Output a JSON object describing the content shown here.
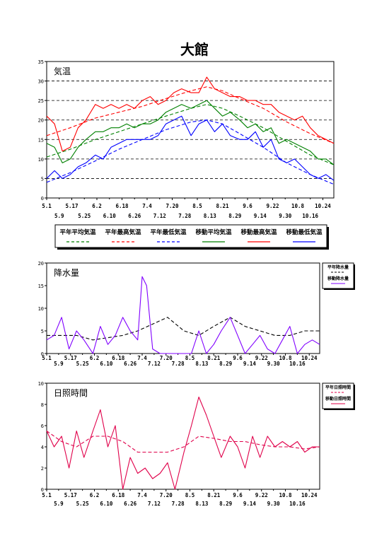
{
  "page": {
    "title": "大館"
  },
  "colors": {
    "green": "#008000",
    "red": "#ff0000",
    "blue": "#0000ff",
    "purple": "#8000ff",
    "crimson": "#e0004a",
    "black": "#000000"
  },
  "chart_data": [
    {
      "type": "line",
      "title": "気温",
      "ylim": [
        0,
        35
      ],
      "yticks": [
        "0",
        "5",
        "10",
        "15",
        "20",
        "25",
        "30",
        "35"
      ],
      "grid": true,
      "xlim": [
        "5.1",
        "10.31"
      ],
      "x_ticks_row1": [
        "5.1",
        "5.17",
        "6.2",
        "6.18",
        "7.4",
        "7.20",
        "8.5",
        "8.21",
        "9.6",
        "9.22",
        "10.8",
        "10.24"
      ],
      "x_ticks_row2": [
        "5.9",
        "5.25",
        "6.10",
        "6.26",
        "7.12",
        "7.28",
        "8.13",
        "8.29",
        "9.14",
        "9.30",
        "10.16"
      ],
      "legend_position": "bottom",
      "series": [
        {
          "name": "平年平均気温",
          "style": "dashed",
          "color": "#008000",
          "x": [
            "5.1",
            "5.16",
            "6.1",
            "6.16",
            "7.1",
            "7.16",
            "8.1",
            "8.11",
            "8.21",
            "9.1",
            "9.16",
            "10.1",
            "10.16",
            "10.31"
          ],
          "values": [
            10.5,
            12.5,
            15.0,
            17.0,
            19.0,
            21.0,
            23.0,
            24.0,
            23.0,
            21.0,
            18.0,
            14.5,
            11.0,
            8.5
          ]
        },
        {
          "name": "平年最高気温",
          "style": "dashed",
          "color": "#ff0000",
          "x": [
            "5.1",
            "5.16",
            "6.1",
            "6.16",
            "7.1",
            "7.16",
            "8.1",
            "8.11",
            "8.21",
            "9.1",
            "9.16",
            "10.1",
            "10.16",
            "10.31"
          ],
          "values": [
            16.0,
            18.0,
            20.5,
            22.0,
            23.5,
            25.5,
            27.5,
            28.5,
            27.5,
            25.5,
            23.0,
            19.5,
            16.5,
            14.0
          ]
        },
        {
          "name": "平年最低気温",
          "style": "dashed",
          "color": "#0000ff",
          "x": [
            "5.1",
            "5.16",
            "6.1",
            "6.16",
            "7.1",
            "7.16",
            "8.1",
            "8.11",
            "8.21",
            "9.1",
            "9.16",
            "10.1",
            "10.16",
            "10.31"
          ],
          "values": [
            4.0,
            6.5,
            9.5,
            12.5,
            15.0,
            17.5,
            19.5,
            20.0,
            19.0,
            16.5,
            13.0,
            9.0,
            6.0,
            3.5
          ]
        },
        {
          "name": "移動平均気温",
          "style": "solid",
          "color": "#008000",
          "x": [
            "5.1",
            "5.6",
            "5.11",
            "5.16",
            "5.21",
            "5.26",
            "6.1",
            "6.6",
            "6.11",
            "6.16",
            "6.21",
            "6.26",
            "7.1",
            "7.6",
            "7.11",
            "7.16",
            "7.21",
            "7.26",
            "8.1",
            "8.6",
            "8.11",
            "8.16",
            "8.21",
            "8.26",
            "9.1",
            "9.6",
            "9.11",
            "9.16",
            "9.21",
            "9.26",
            "10.1",
            "10.6",
            "10.11",
            "10.16",
            "10.21",
            "10.26",
            "10.31"
          ],
          "values": [
            14,
            13,
            9,
            10,
            13,
            15,
            17,
            17,
            18,
            18,
            19,
            18,
            19,
            19,
            20,
            22,
            23,
            24,
            23,
            24,
            25,
            23,
            21,
            22,
            20,
            18,
            19,
            17,
            18,
            14,
            15,
            14,
            13,
            12,
            10,
            10,
            8.5
          ]
        },
        {
          "name": "移動最高気温",
          "style": "solid",
          "color": "#ff0000",
          "x": [
            "5.1",
            "5.6",
            "5.11",
            "5.16",
            "5.21",
            "5.26",
            "6.1",
            "6.6",
            "6.11",
            "6.16",
            "6.21",
            "6.26",
            "7.1",
            "7.6",
            "7.11",
            "7.16",
            "7.21",
            "7.26",
            "8.1",
            "8.6",
            "8.11",
            "8.16",
            "8.21",
            "8.26",
            "9.1",
            "9.6",
            "9.11",
            "9.16",
            "9.21",
            "9.26",
            "10.1",
            "10.6",
            "10.11",
            "10.16",
            "10.21",
            "10.26",
            "10.31"
          ],
          "values": [
            21,
            19,
            12,
            13,
            18,
            20,
            24,
            23,
            24,
            23,
            24,
            23,
            25,
            26,
            24,
            25,
            27,
            28,
            27,
            27,
            31,
            28,
            27,
            26,
            26,
            25,
            25,
            24,
            24,
            22,
            21,
            20,
            21,
            18,
            16,
            15,
            14
          ]
        },
        {
          "name": "移動最低気温",
          "style": "solid",
          "color": "#0000ff",
          "x": [
            "5.1",
            "5.6",
            "5.11",
            "5.16",
            "5.21",
            "5.26",
            "6.1",
            "6.6",
            "6.11",
            "6.16",
            "6.21",
            "6.26",
            "7.1",
            "7.6",
            "7.11",
            "7.16",
            "7.21",
            "7.26",
            "8.1",
            "8.6",
            "8.11",
            "8.16",
            "8.21",
            "8.26",
            "9.1",
            "9.6",
            "9.11",
            "9.16",
            "9.21",
            "9.26",
            "10.1",
            "10.6",
            "10.11",
            "10.16",
            "10.21",
            "10.26",
            "10.31"
          ],
          "values": [
            5,
            7,
            5,
            6,
            8,
            9,
            11,
            10,
            13,
            14,
            15,
            15,
            15,
            15,
            16,
            19,
            20,
            21,
            16,
            19,
            20,
            17,
            19,
            16,
            15,
            15,
            17,
            13,
            15,
            10,
            9,
            10,
            8,
            6,
            5,
            6,
            4.5
          ]
        }
      ]
    },
    {
      "type": "line",
      "title": "降水量",
      "ylim": [
        0,
        20
      ],
      "yticks": [
        "0",
        "5",
        "10",
        "15",
        "20"
      ],
      "grid": false,
      "xlim": [
        "5.1",
        "10.31"
      ],
      "x_ticks_row1": [
        "5.1",
        "5.17",
        "6.2",
        "6.18",
        "7.4",
        "7.20",
        "8.5",
        "8.21",
        "9.6",
        "9.22",
        "10.8",
        "10.24"
      ],
      "x_ticks_row2": [
        "5.9",
        "5.25",
        "6.10",
        "6.26",
        "7.12",
        "7.28",
        "8.13",
        "8.29",
        "9.14",
        "9.30",
        "10.16"
      ],
      "legend_position": "right",
      "series": [
        {
          "name": "平年降水量",
          "style": "dashed",
          "color": "#000000",
          "x": [
            "5.1",
            "5.11",
            "5.21",
            "6.1",
            "6.11",
            "6.21",
            "7.1",
            "7.11",
            "7.21",
            "8.1",
            "8.11",
            "8.21",
            "9.1",
            "9.11",
            "9.21",
            "10.1",
            "10.11",
            "10.21",
            "10.31"
          ],
          "values": [
            4,
            4,
            4,
            3,
            3.5,
            4,
            5,
            6.5,
            8,
            5,
            4,
            6,
            8,
            6,
            5,
            4,
            4,
            5,
            5
          ]
        },
        {
          "name": "移動降水量",
          "style": "solid",
          "color": "#8000ff",
          "x": [
            "5.1",
            "5.6",
            "5.11",
            "5.16",
            "5.21",
            "5.26",
            "6.1",
            "6.6",
            "6.11",
            "6.16",
            "6.21",
            "6.26",
            "7.1",
            "7.4",
            "7.7",
            "7.11",
            "7.16",
            "7.21",
            "7.26",
            "8.1",
            "8.6",
            "8.11",
            "8.16",
            "8.21",
            "8.26",
            "9.1",
            "9.6",
            "9.11",
            "9.16",
            "9.21",
            "9.26",
            "10.1",
            "10.6",
            "10.11",
            "10.16",
            "10.21",
            "10.26",
            "10.31"
          ],
          "values": [
            3,
            4,
            8,
            1,
            5,
            3,
            0,
            6,
            2,
            4,
            8,
            5,
            3,
            17,
            15,
            1,
            0,
            0,
            0,
            0,
            0,
            5,
            0,
            2,
            5,
            8,
            4,
            0,
            2,
            4,
            1,
            0,
            3,
            6,
            0,
            2,
            3,
            2
          ]
        }
      ]
    },
    {
      "type": "line",
      "title": "日照時間",
      "ylim": [
        0,
        10
      ],
      "yticks": [
        "0",
        "2",
        "4",
        "6",
        "8",
        "10"
      ],
      "grid": false,
      "xlim": [
        "5.1",
        "10.31"
      ],
      "x_ticks_row1": [
        "5.1",
        "5.17",
        "6.2",
        "6.18",
        "7.4",
        "7.20",
        "8.5",
        "8.21",
        "9.6",
        "9.22",
        "10.8",
        "10.24"
      ],
      "x_ticks_row2": [
        "5.9",
        "5.25",
        "6.10",
        "6.26",
        "7.12",
        "7.28",
        "8.13",
        "8.29",
        "9.14",
        "9.30",
        "10.16"
      ],
      "legend_position": "right",
      "series": [
        {
          "name": "平年日照時間",
          "style": "dashed",
          "color": "#e0004a",
          "x": [
            "5.1",
            "5.11",
            "5.21",
            "6.1",
            "6.11",
            "6.21",
            "7.1",
            "7.11",
            "7.21",
            "8.1",
            "8.11",
            "8.21",
            "9.1",
            "9.11",
            "9.21",
            "10.1",
            "10.11",
            "10.21",
            "10.31"
          ],
          "values": [
            5.5,
            4.5,
            4,
            5,
            5,
            4.5,
            3.5,
            3.5,
            3.5,
            4,
            5,
            4.8,
            4.5,
            4.5,
            4.2,
            4,
            4,
            3.8,
            4
          ]
        },
        {
          "name": "移動日照時間",
          "style": "solid",
          "color": "#e0004a",
          "x": [
            "5.1",
            "5.6",
            "5.11",
            "5.16",
            "5.21",
            "5.26",
            "6.1",
            "6.6",
            "6.11",
            "6.16",
            "6.21",
            "6.26",
            "7.1",
            "7.6",
            "7.11",
            "7.16",
            "7.21",
            "7.26",
            "8.1",
            "8.6",
            "8.11",
            "8.16",
            "8.21",
            "8.26",
            "9.1",
            "9.6",
            "9.11",
            "9.16",
            "9.21",
            "9.26",
            "10.1",
            "10.6",
            "10.11",
            "10.16",
            "10.21",
            "10.26",
            "10.31"
          ],
          "values": [
            5.5,
            4,
            5,
            2,
            5.5,
            3,
            5.5,
            7.5,
            4,
            6,
            0,
            3,
            1.5,
            2,
            1,
            1.5,
            2.5,
            0,
            3.5,
            6,
            8.7,
            7,
            5,
            3,
            5,
            4,
            2,
            5,
            3,
            5,
            4,
            4.5,
            4,
            4.5,
            3.5,
            4,
            4
          ]
        }
      ]
    }
  ]
}
